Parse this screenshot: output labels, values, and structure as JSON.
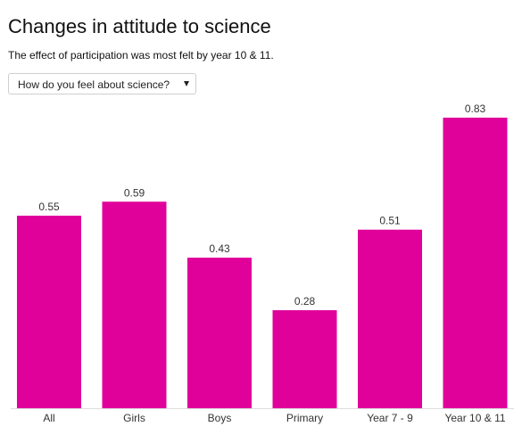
{
  "header": {
    "title": "Changes in attitude to science",
    "subtitle": "The effect of participation was most felt by year 10 & 11."
  },
  "selector": {
    "selected": "How do you feel about science?"
  },
  "colors": {
    "bar": "#e0009a",
    "axis": "#dddddd"
  },
  "chart_data": {
    "type": "bar",
    "categories": [
      "All",
      "Girls",
      "Boys",
      "Primary",
      "Year 7 - 9",
      "Year 10 & 11"
    ],
    "values": [
      0.55,
      0.59,
      0.43,
      0.28,
      0.51,
      0.83
    ],
    "value_labels": [
      "0.55",
      "0.59",
      "0.43",
      "0.28",
      "0.51",
      "0.83"
    ],
    "title": "Changes in attitude to science",
    "xlabel": "",
    "ylabel": "",
    "ylim": [
      0,
      0.83
    ],
    "grid": false,
    "legend": "none"
  }
}
